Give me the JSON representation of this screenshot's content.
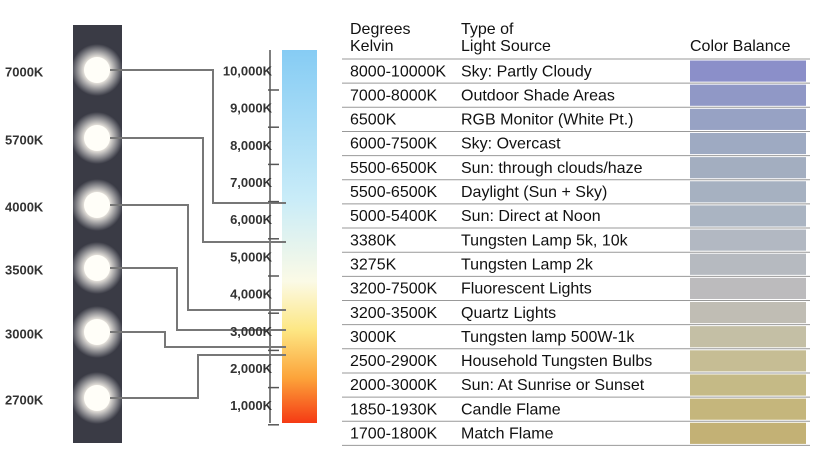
{
  "led_labels": [
    "7000K",
    "5700K",
    "4000K",
    "3500K",
    "3000K",
    "2700K"
  ],
  "scale_labels": [
    "10,000K",
    "9,000K",
    "8,000K",
    "7,000K",
    "6,000K",
    "5,000K",
    "4,000K",
    "3,000K",
    "2,000K",
    "1,000K"
  ],
  "table": {
    "headers": {
      "kelvin": [
        "Degrees",
        "Kelvin"
      ],
      "source": [
        "Type of",
        "Light Source"
      ],
      "balance": "Color Balance"
    },
    "rows": [
      {
        "kelvin": "8000-10000K",
        "source": "Sky: Partly Cloudy",
        "color": "#8b8fc9"
      },
      {
        "kelvin": "7000-8000K",
        "source": "Outdoor Shade Areas",
        "color": "#9098c6"
      },
      {
        "kelvin": "6500K",
        "source": "RGB Monitor (White Pt.)",
        "color": "#97a2c4"
      },
      {
        "kelvin": "6000-7500K",
        "source": "Sky: Overcast",
        "color": "#9eaac2"
      },
      {
        "kelvin": "5500-6500K",
        "source": "Sun: through clouds/haze",
        "color": "#a3aec0"
      },
      {
        "kelvin": "5500-6500K",
        "source": "Daylight (Sun + Sky)",
        "color": "#a6b1c1"
      },
      {
        "kelvin": "5000-5400K",
        "source": "Sun: Direct at Noon",
        "color": "#aab4c2"
      },
      {
        "kelvin": "3380K",
        "source": "Tungsten Lamp 5k, 10k",
        "color": "#b2b8c2"
      },
      {
        "kelvin": "3275K",
        "source": "Tungsten Lamp 2k",
        "color": "#b6bac0"
      },
      {
        "kelvin": "3200-7500K",
        "source": "Fluorescent Lights",
        "color": "#bcbbbd"
      },
      {
        "kelvin": "3200-3500K",
        "source": "Quartz Lights",
        "color": "#c0bdb4"
      },
      {
        "kelvin": "3000K",
        "source": "Tungsten lamp 500W-1k",
        "color": "#c4bfa5"
      },
      {
        "kelvin": "2500-2900K",
        "source": "Household Tungsten Bulbs",
        "color": "#c6bd94"
      },
      {
        "kelvin": "2000-3000K",
        "source": "Sun: At Sunrise or Sunset",
        "color": "#c5ba86"
      },
      {
        "kelvin": "1850-1930K",
        "source": "Candle Flame",
        "color": "#c5b67c"
      },
      {
        "kelvin": "1700-1800K",
        "source": "Match Flame",
        "color": "#c3b175"
      }
    ]
  }
}
